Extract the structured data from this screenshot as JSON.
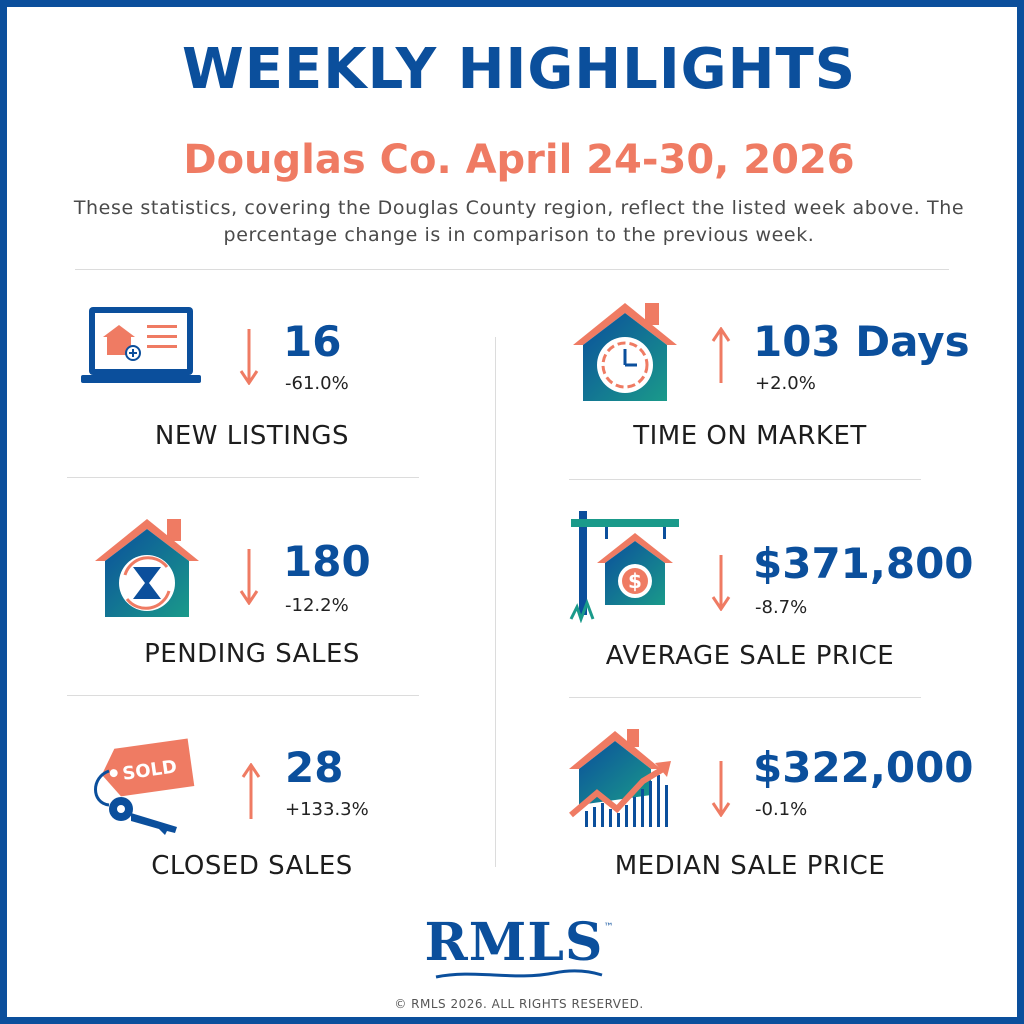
{
  "header": {
    "title": "WEEKLY HIGHLIGHTS",
    "subtitle": "Douglas Co. April 24-30, 2026",
    "description": "These statistics, covering the Douglas County region, reflect the listed week above. The percentage change is in comparison to the previous week."
  },
  "stats": {
    "new_listings": {
      "value": "16",
      "change": "-61.0%",
      "label": "NEW LISTINGS",
      "direction": "down",
      "icon": "laptop-house-icon"
    },
    "pending_sales": {
      "value": "180",
      "change": "-12.2%",
      "label": "PENDING SALES",
      "direction": "down",
      "icon": "house-hourglass-icon"
    },
    "closed_sales": {
      "value": "28",
      "change": "+133.3%",
      "label": "CLOSED SALES",
      "direction": "up",
      "icon": "sold-tag-key-icon"
    },
    "time_on_market": {
      "value": "103 Days",
      "change": "+2.0%",
      "label": "TIME ON MARKET",
      "direction": "up",
      "icon": "house-clock-icon"
    },
    "average_sale_price": {
      "value": "$371,800",
      "change": "-8.7%",
      "label": "AVERAGE SALE PRICE",
      "direction": "down",
      "icon": "sign-house-dollar-icon"
    },
    "median_sale_price": {
      "value": "$322,000",
      "change": "-0.1%",
      "label": "MEDIAN SALE PRICE",
      "direction": "down",
      "icon": "house-chart-icon"
    }
  },
  "footer": {
    "logo": "RMLS",
    "trademark": "™",
    "copyright": "© RMLS 2026. ALL RIGHTS RESERVED."
  },
  "colors": {
    "brand_blue": "#0b4f9c",
    "accent_coral": "#ef7b63",
    "teal": "#1a9a8a"
  }
}
